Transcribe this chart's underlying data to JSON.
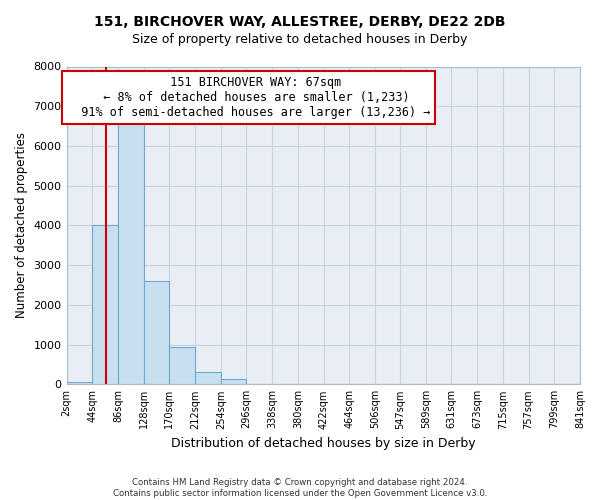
{
  "title1": "151, BIRCHOVER WAY, ALLESTREE, DERBY, DE22 2DB",
  "title2": "Size of property relative to detached houses in Derby",
  "xlabel": "Distribution of detached houses by size in Derby",
  "ylabel": "Number of detached properties",
  "footer1": "Contains HM Land Registry data © Crown copyright and database right 2024.",
  "footer2": "Contains public sector information licensed under the Open Government Licence v3.0.",
  "annotation_line1": "151 BIRCHOVER WAY: 67sqm",
  "annotation_line2": "← 8% of detached houses are smaller (1,233)",
  "annotation_line3": "91% of semi-detached houses are larger (13,236) →",
  "bar_edges": [
    2,
    44,
    86,
    128,
    170,
    212,
    254,
    296,
    338,
    380,
    422,
    464,
    506,
    547,
    589,
    631,
    673,
    715,
    757,
    799,
    841
  ],
  "bar_heights": [
    60,
    4000,
    6600,
    2600,
    950,
    320,
    125,
    0,
    0,
    0,
    0,
    0,
    0,
    0,
    0,
    0,
    0,
    0,
    0,
    0
  ],
  "bar_color": "#c8dff0",
  "bar_edge_color": "#6aabce",
  "property_line_x": 67,
  "property_line_color": "#cc0000",
  "ylim": [
    0,
    8000
  ],
  "yticks": [
    0,
    1000,
    2000,
    3000,
    4000,
    5000,
    6000,
    7000,
    8000
  ],
  "grid_color": "#c8d4e0",
  "background_color": "#ffffff",
  "plot_bg_color": "#e8eef4",
  "annotation_box_color": "#ffffff",
  "annotation_box_edge": "#cc0000"
}
